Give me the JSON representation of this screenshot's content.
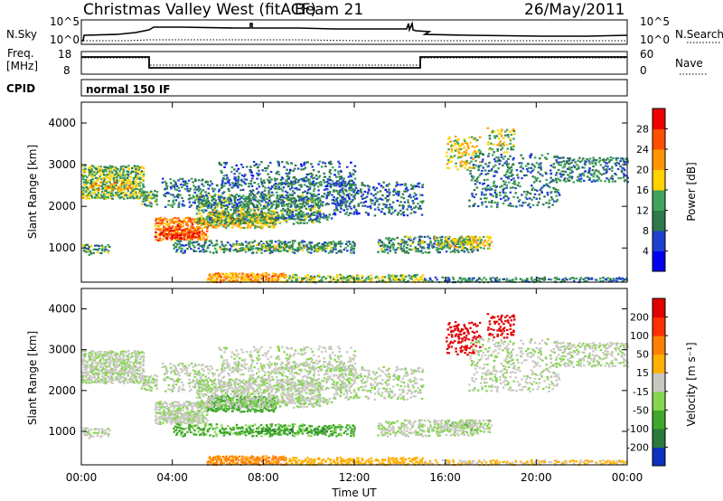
{
  "header": {
    "station": "Christmas Valley West (fitACF)",
    "beam": "Beam 21",
    "date": "26/May/2011"
  },
  "summary_panels": {
    "nsky_label": "N.Sky",
    "nsky_ticks": [
      "10^5",
      "10^0"
    ],
    "nsearch_label": "N.Search",
    "nsearch_ticks": [
      "10^5",
      "10^0"
    ],
    "freq_label_line1": "Freq.",
    "freq_label_line2": "[MHz]",
    "freq_ticks": [
      "18",
      "8"
    ],
    "nave_label": "Nave",
    "nave_ticks": [
      "60",
      "0"
    ],
    "cpid_label": "CPID",
    "cpid_value": "normal 150 IF"
  },
  "colors": {
    "power_scale": [
      "#0000ee",
      "#1f3fd0",
      "#2e7a4a",
      "#3fa35a",
      "#ffd200",
      "#ff9600",
      "#ff5000",
      "#ee0000"
    ],
    "velocity_scale": [
      "#1030c0",
      "#2a7a3a",
      "#3fa82a",
      "#86d650",
      "#c8c8c0",
      "#ffb000",
      "#ff8000",
      "#ff3000",
      "#e00000"
    ]
  },
  "chart_data": [
    {
      "type": "heatmap",
      "panel": "Power",
      "xlabel": "",
      "ylabel": "Slant Range [km]",
      "xlim": [
        0,
        24
      ],
      "ylim": [
        180,
        4500
      ],
      "yticks": [
        "1000",
        "2000",
        "3000",
        "4000"
      ],
      "colorbar_label": "Power [dB]",
      "colorbar_ticks": [
        "4",
        "8",
        "12",
        "16",
        "20",
        "24",
        "28"
      ],
      "colorbar_range": [
        0,
        30
      ]
    },
    {
      "type": "heatmap",
      "panel": "Velocity",
      "xlabel": "Time UT",
      "ylabel": "Slant Range [km]",
      "xlim": [
        0,
        24
      ],
      "ylim": [
        180,
        4500
      ],
      "xticks": [
        "00:00",
        "04:00",
        "08:00",
        "12:00",
        "16:00",
        "20:00",
        "00:00"
      ],
      "yticks": [
        "1000",
        "2000",
        "3000",
        "4000"
      ],
      "colorbar_label": "Velocity [m s⁻¹]",
      "colorbar_ticks": [
        "200",
        "100",
        "50",
        "15",
        "-15",
        "-50",
        "-100",
        "-200"
      ]
    }
  ]
}
